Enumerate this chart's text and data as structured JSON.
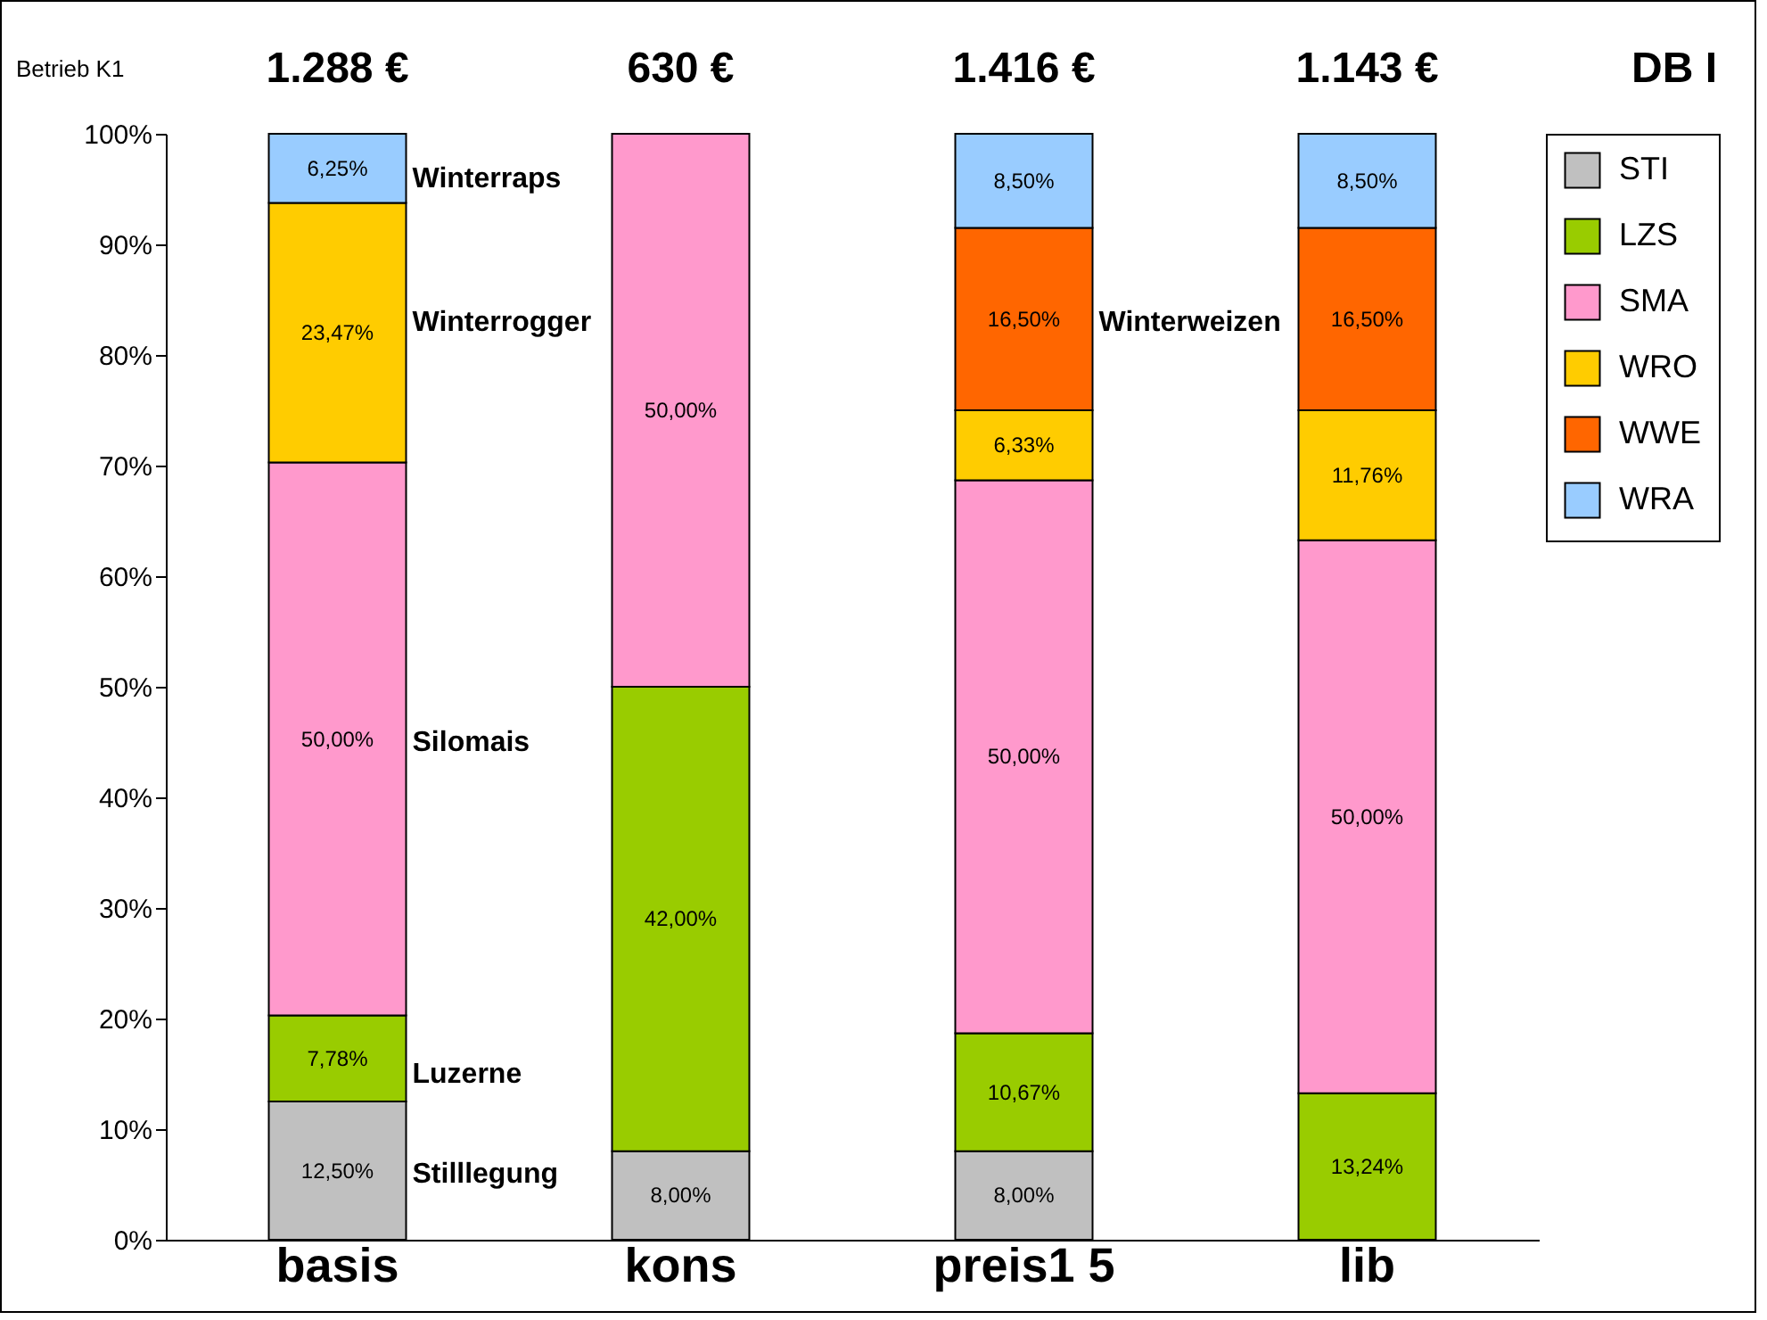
{
  "chart_data": {
    "type": "bar",
    "stacked": true,
    "categories": [
      "basis",
      "kons",
      "preis1  5",
      "lib"
    ],
    "series": [
      {
        "name": "STI",
        "color": "#c0c0c0",
        "values": [
          12.5,
          8,
          8,
          null
        ],
        "value_labels": [
          "12,50%",
          "8,00%",
          "8,00%",
          null
        ]
      },
      {
        "name": "LZS",
        "color": "#99cc00",
        "values": [
          7.78,
          42,
          10.67,
          13.24
        ],
        "value_labels": [
          "7,78%",
          "42,00%",
          "10,67%",
          "13,24%"
        ]
      },
      {
        "name": "SMA",
        "color": "#ff99cc",
        "values": [
          50,
          50,
          50,
          50
        ],
        "value_labels": [
          "50,00%",
          "50,00%",
          "50,00%",
          "50,00%"
        ]
      },
      {
        "name": "WRO",
        "color": "#ffcc00",
        "values": [
          23.47,
          null,
          6.33,
          11.76
        ],
        "value_labels": [
          "23,47%",
          null,
          "6,33%",
          "11,76%"
        ]
      },
      {
        "name": "WWE",
        "color": "#ff6600",
        "values": [
          null,
          null,
          16.5,
          16.5
        ],
        "value_labels": [
          null,
          null,
          "16,50%",
          "16,50%"
        ]
      },
      {
        "name": "WRA",
        "color": "#99ccff",
        "values": [
          6.25,
          null,
          8.5,
          8.5
        ],
        "value_labels": [
          "6,25%",
          null,
          "8,50%",
          "8,50%"
        ]
      }
    ],
    "ylim": [
      0,
      100
    ],
    "yticks": [
      {
        "value": 0,
        "label": "0%"
      },
      {
        "value": 10,
        "label": "10%"
      },
      {
        "value": 20,
        "label": "20%"
      },
      {
        "value": 30,
        "label": "30%"
      },
      {
        "value": 40,
        "label": "40%"
      },
      {
        "value": 50,
        "label": "50%"
      },
      {
        "value": 60,
        "label": "60%"
      },
      {
        "value": 70,
        "label": "70%"
      },
      {
        "value": 80,
        "label": "80%"
      },
      {
        "value": 90,
        "label": "90%"
      },
      {
        "value": 100,
        "label": "100%"
      }
    ],
    "legend": "right",
    "annotations": [
      "Betrieb  K1",
      "1.288 €",
      "630 €",
      "1.416 €",
      "1.143 €",
      "DB I",
      "Winterraps",
      "Winterrogger",
      "Silomais",
      "Luzerne",
      "Stilllegung",
      "Winterweizen"
    ]
  }
}
